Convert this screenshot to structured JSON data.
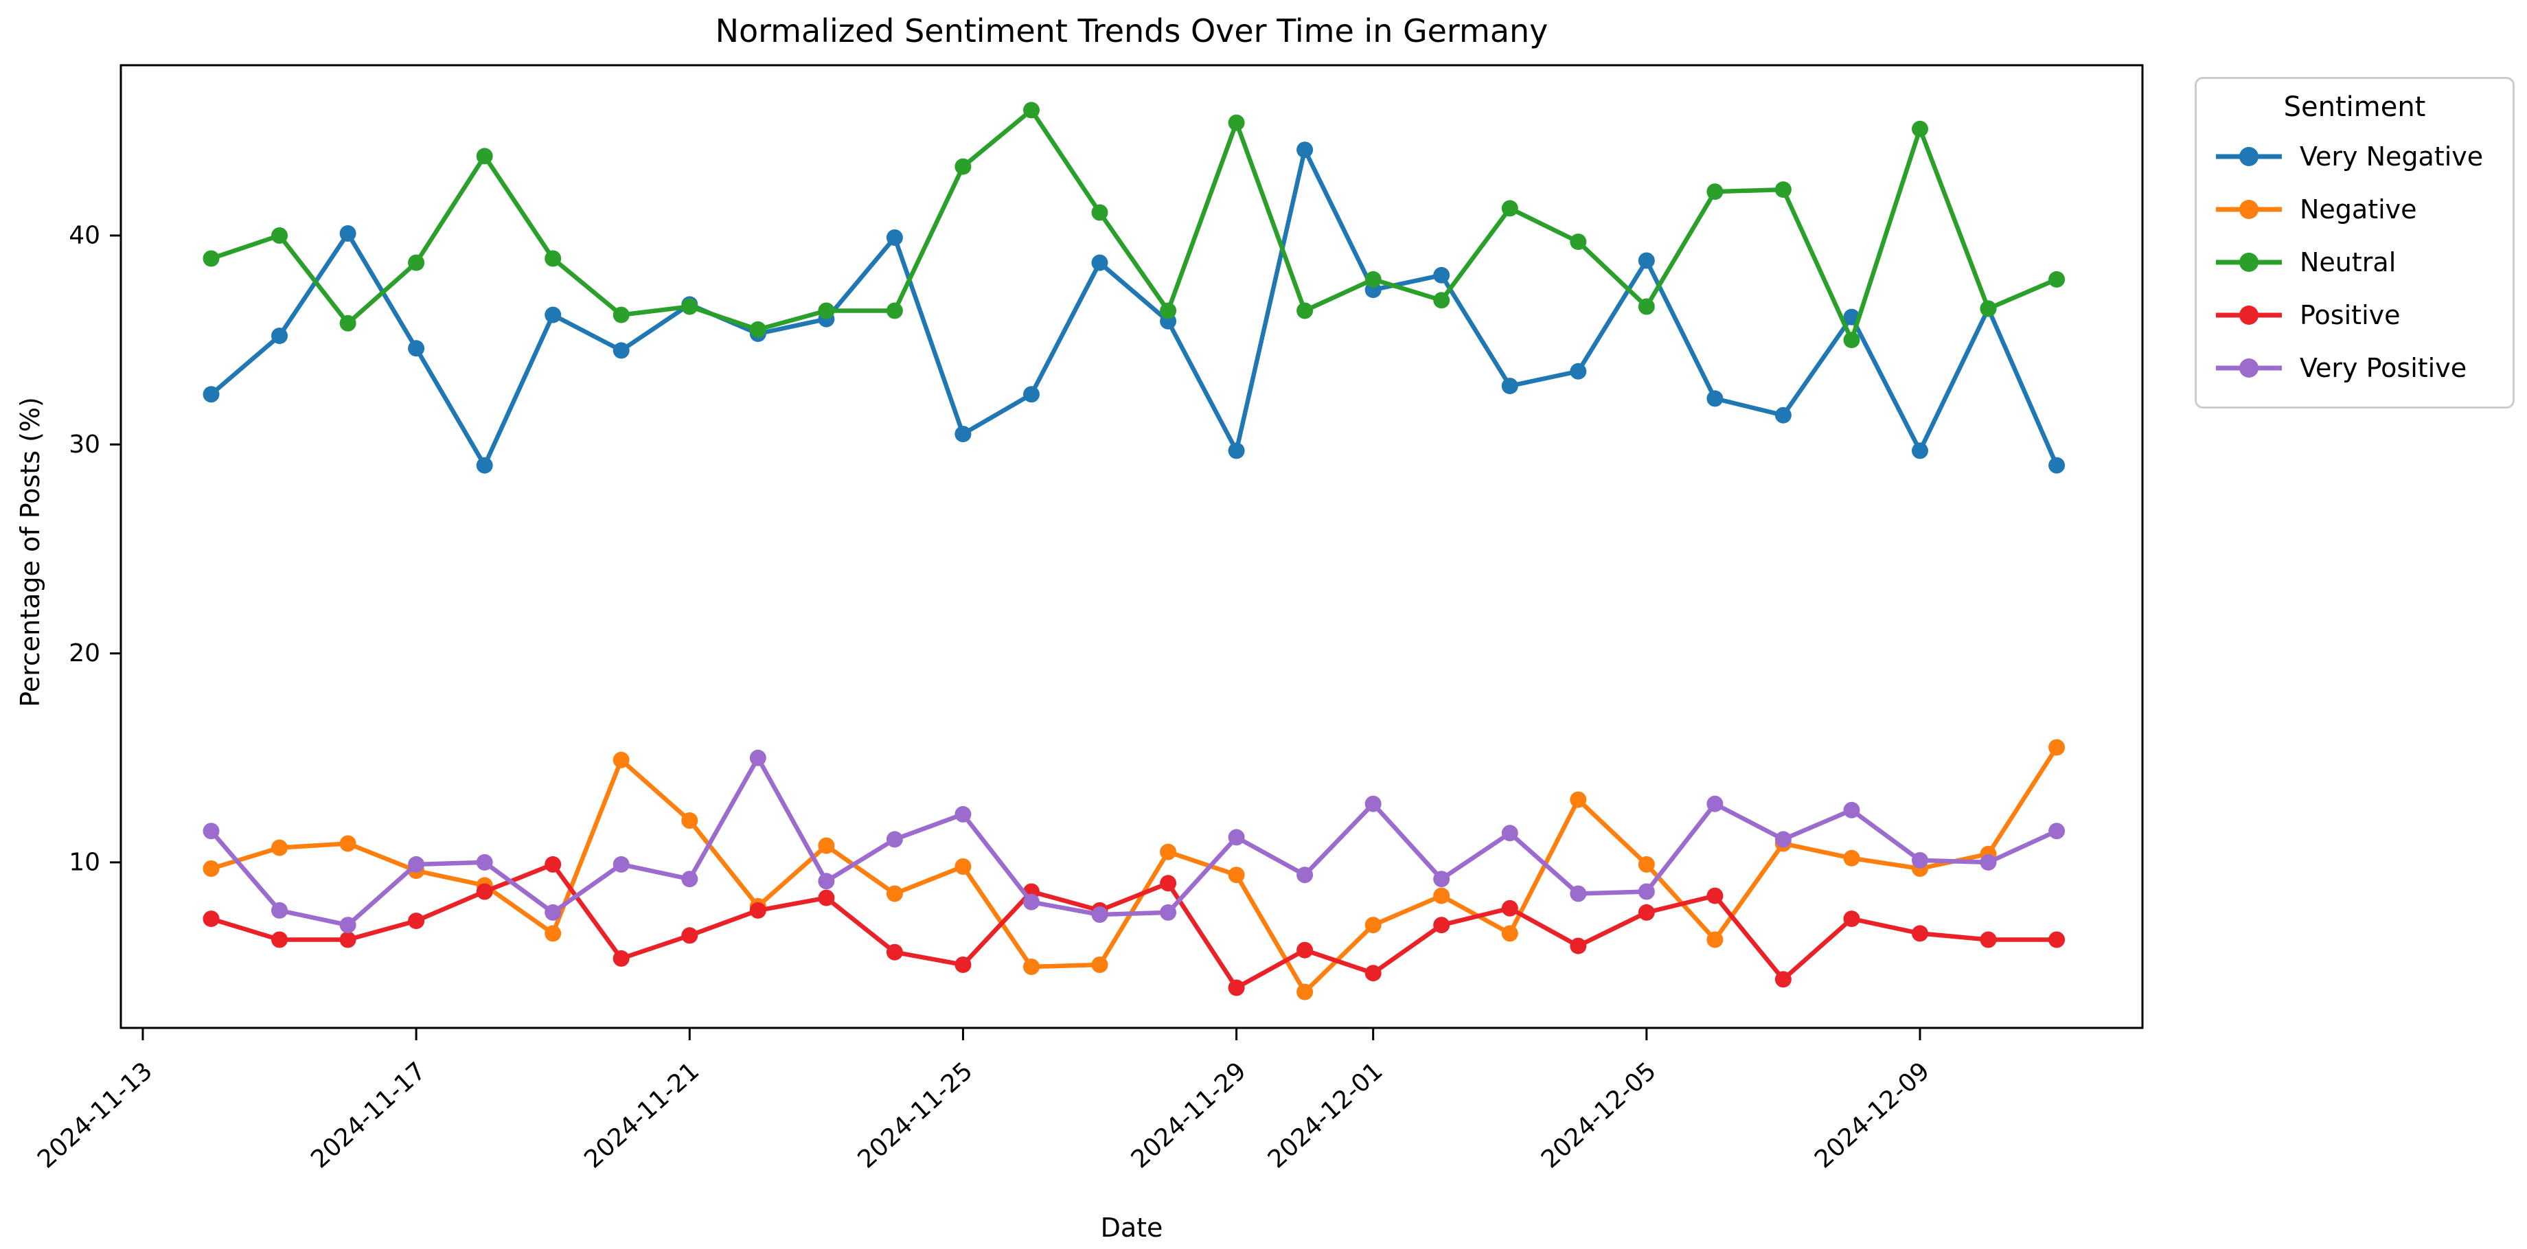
{
  "figure": {
    "background": "#ffffff"
  },
  "chart_data": {
    "type": "line",
    "title": "Normalized Sentiment Trends Over Time in Germany",
    "xlabel": "Date",
    "ylabel": "Percentage of Posts (%)",
    "legend": {
      "title": "Sentiment",
      "position": "outside-right"
    },
    "grid": false,
    "marker": "circle",
    "x": [
      "2024-11-14",
      "2024-11-15",
      "2024-11-16",
      "2024-11-17",
      "2024-11-18",
      "2024-11-19",
      "2024-11-20",
      "2024-11-21",
      "2024-11-22",
      "2024-11-23",
      "2024-11-24",
      "2024-11-25",
      "2024-11-26",
      "2024-11-27",
      "2024-11-28",
      "2024-11-29",
      "2024-11-30",
      "2024-12-01",
      "2024-12-02",
      "2024-12-03",
      "2024-12-04",
      "2024-12-05",
      "2024-12-06",
      "2024-12-07",
      "2024-12-08",
      "2024-12-09",
      "2024-12-10",
      "2024-12-11"
    ],
    "series": [
      {
        "name": "Very Negative",
        "color": "#1f77b4",
        "values": [
          32.4,
          35.2,
          40.1,
          34.6,
          29.0,
          36.2,
          34.5,
          36.7,
          35.3,
          36.0,
          39.9,
          30.5,
          32.4,
          38.7,
          35.9,
          29.7,
          44.1,
          37.4,
          38.1,
          32.8,
          33.5,
          38.8,
          32.2,
          31.4,
          36.1,
          29.7,
          36.5,
          29.0
        ]
      },
      {
        "name": "Negative",
        "color": "#ff7f0e",
        "values": [
          9.7,
          10.7,
          10.9,
          9.6,
          8.9,
          6.6,
          14.9,
          12.0,
          7.9,
          10.8,
          8.5,
          9.8,
          5.0,
          5.1,
          10.5,
          9.4,
          3.8,
          7.0,
          8.4,
          6.6,
          13.0,
          9.9,
          6.3,
          10.9,
          10.2,
          9.7,
          10.4,
          15.5
        ]
      },
      {
        "name": "Neutral",
        "color": "#2aa02a",
        "values": [
          38.9,
          40.0,
          35.8,
          38.7,
          43.8,
          38.9,
          36.2,
          36.6,
          35.5,
          36.4,
          36.4,
          43.3,
          46.0,
          41.1,
          36.4,
          45.4,
          36.4,
          37.9,
          36.9,
          41.3,
          39.7,
          36.6,
          42.1,
          42.2,
          35.0,
          45.1,
          36.5,
          37.9
        ]
      },
      {
        "name": "Positive",
        "color": "#ea2127",
        "values": [
          7.3,
          6.3,
          6.3,
          7.2,
          8.6,
          9.9,
          5.4,
          6.5,
          7.7,
          8.3,
          5.7,
          5.1,
          8.6,
          7.7,
          9.0,
          4.0,
          5.8,
          4.7,
          7.0,
          7.8,
          6.0,
          7.6,
          8.4,
          4.4,
          7.3,
          6.6,
          6.3,
          6.3
        ]
      },
      {
        "name": "Very Positive",
        "color": "#9c6bce",
        "values": [
          11.5,
          7.7,
          7.0,
          9.9,
          10.0,
          7.6,
          9.9,
          9.2,
          15.0,
          9.1,
          11.1,
          12.3,
          8.1,
          7.5,
          7.6,
          11.2,
          9.4,
          12.8,
          9.2,
          11.4,
          8.5,
          8.6,
          12.8,
          11.1,
          12.5,
          10.1,
          10.0,
          11.5
        ]
      }
    ],
    "x_tick_labels": [
      "2024-11-13",
      "2024-11-17",
      "2024-11-21",
      "2024-11-25",
      "2024-11-29",
      "2024-12-01",
      "2024-12-05",
      "2024-12-09"
    ],
    "x_tick_day_offsets": [
      -1,
      3,
      7,
      11,
      15,
      17,
      21,
      25
    ],
    "y_ticks": [
      10,
      20,
      30,
      40
    ],
    "ylim": [
      2.1,
      48.2
    ]
  }
}
